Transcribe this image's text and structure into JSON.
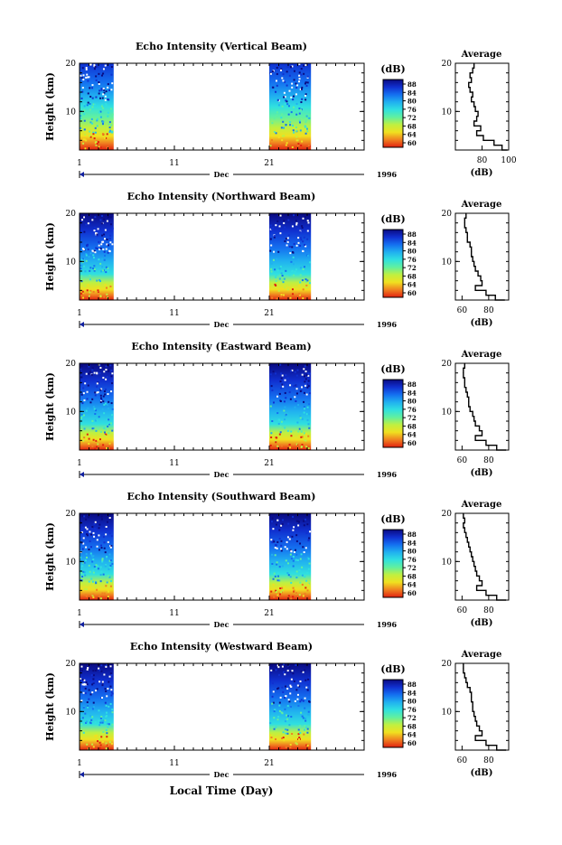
{
  "figure": {
    "x_label": "Local Time (Day)",
    "month_label": "Dec",
    "year_label": "1996"
  },
  "colorbar": {
    "unit_label": "(dB)",
    "ticks": [
      "88",
      "84",
      "80",
      "76",
      "72",
      "68",
      "64",
      "60"
    ],
    "colors": [
      "#0a0a80",
      "#1030d0",
      "#1470f0",
      "#20b0f0",
      "#30e0e0",
      "#60f0a0",
      "#c0f040",
      "#f0e020",
      "#f08020",
      "#e02010"
    ]
  },
  "chart_data": [
    {
      "type": "heatmap",
      "title": "Echo Intensity (Vertical Beam)",
      "ylabel": "Height (km)",
      "ylim": [
        2,
        20
      ],
      "yticks": [
        "20",
        "10"
      ],
      "xticks": [
        "1",
        "11",
        "21"
      ],
      "data_day_ranges": [
        [
          1,
          4.6
        ],
        [
          21,
          25.4
        ]
      ],
      "zlim": [
        50,
        88
      ],
      "average": {
        "title": "Average",
        "xlabel": "(dB)",
        "xticks": [
          "80",
          "100"
        ],
        "xlim": [
          60,
          100
        ],
        "ylim": [
          2,
          20
        ],
        "yticks": [
          "20",
          "10"
        ],
        "height_km": [
          20,
          19,
          18,
          17,
          16,
          15,
          14,
          13,
          12,
          11,
          10,
          9,
          8,
          7,
          6,
          5,
          4,
          3,
          2
        ],
        "mean_db": [
          74,
          73,
          71,
          72,
          70,
          71,
          73,
          72,
          74,
          75,
          77,
          76,
          74,
          79,
          76,
          81,
          89,
          95,
          99
        ]
      }
    },
    {
      "type": "heatmap",
      "title": "Echo Intensity (Northward Beam)",
      "ylabel": "Height (km)",
      "ylim": [
        2,
        20
      ],
      "yticks": [
        "20",
        "10"
      ],
      "xticks": [
        "1",
        "11",
        "21"
      ],
      "data_day_ranges": [
        [
          1,
          4.6
        ],
        [
          21,
          25.4
        ]
      ],
      "zlim": [
        50,
        88
      ],
      "average": {
        "title": "Average",
        "xlabel": "(dB)",
        "xticks": [
          "60",
          "80"
        ],
        "xlim": [
          55,
          95
        ],
        "ylim": [
          2,
          20
        ],
        "yticks": [
          "20",
          "10"
        ],
        "height_km": [
          20,
          19,
          18,
          17,
          16,
          15,
          14,
          13,
          12,
          11,
          10,
          9,
          8,
          7,
          6,
          5,
          4,
          3,
          2
        ],
        "mean_db": [
          63,
          62,
          62,
          63,
          64,
          64,
          66,
          67,
          67,
          68,
          69,
          70,
          72,
          74,
          75,
          70,
          78,
          85,
          92
        ]
      }
    },
    {
      "type": "heatmap",
      "title": "Echo Intensity (Eastward Beam)",
      "ylabel": "Height (km)",
      "ylim": [
        2,
        20
      ],
      "yticks": [
        "20",
        "10"
      ],
      "xticks": [
        "1",
        "11",
        "21"
      ],
      "data_day_ranges": [
        [
          1,
          4.6
        ],
        [
          21,
          25.4
        ]
      ],
      "zlim": [
        50,
        88
      ],
      "average": {
        "title": "Average",
        "xlabel": "(dB)",
        "xticks": [
          "60",
          "80"
        ],
        "xlim": [
          55,
          95
        ],
        "ylim": [
          2,
          20
        ],
        "yticks": [
          "20",
          "10"
        ],
        "height_km": [
          20,
          19,
          18,
          17,
          16,
          15,
          14,
          13,
          12,
          11,
          10,
          9,
          8,
          7,
          6,
          5,
          4,
          3,
          2
        ],
        "mean_db": [
          62,
          61,
          61,
          62,
          62,
          63,
          64,
          65,
          65,
          66,
          68,
          69,
          70,
          73,
          75,
          70,
          78,
          86,
          93
        ]
      }
    },
    {
      "type": "heatmap",
      "title": "Echo Intensity (Southward Beam)",
      "ylabel": "Height (km)",
      "ylim": [
        2,
        20
      ],
      "yticks": [
        "20",
        "10"
      ],
      "xticks": [
        "1",
        "11",
        "21"
      ],
      "data_day_ranges": [
        [
          1,
          4.6
        ],
        [
          21,
          25.4
        ]
      ],
      "zlim": [
        50,
        88
      ],
      "average": {
        "title": "Average",
        "xlabel": "(dB)",
        "xticks": [
          "60",
          "80"
        ],
        "xlim": [
          55,
          95
        ],
        "ylim": [
          2,
          20
        ],
        "yticks": [
          "20",
          "10"
        ],
        "height_km": [
          20,
          19,
          18,
          17,
          16,
          15,
          14,
          13,
          12,
          11,
          10,
          9,
          8,
          7,
          6,
          5,
          4,
          3,
          2
        ],
        "mean_db": [
          61,
          62,
          61,
          62,
          63,
          64,
          65,
          66,
          67,
          68,
          69,
          70,
          71,
          73,
          75,
          71,
          78,
          86,
          93
        ]
      }
    },
    {
      "type": "heatmap",
      "title": "Echo Intensity (Westward Beam)",
      "ylabel": "Height (km)",
      "ylim": [
        2,
        20
      ],
      "yticks": [
        "20",
        "10"
      ],
      "xticks": [
        "1",
        "11",
        "21"
      ],
      "data_day_ranges": [
        [
          1,
          4.6
        ],
        [
          21,
          25.4
        ]
      ],
      "zlim": [
        50,
        88
      ],
      "average": {
        "title": "Average",
        "xlabel": "(dB)",
        "xticks": [
          "60",
          "80"
        ],
        "xlim": [
          55,
          95
        ],
        "ylim": [
          2,
          20
        ],
        "yticks": [
          "20",
          "10"
        ],
        "height_km": [
          20,
          19,
          18,
          17,
          16,
          15,
          14,
          13,
          12,
          11,
          10,
          9,
          8,
          7,
          6,
          5,
          4,
          3,
          2
        ],
        "mean_db": [
          61,
          61,
          62,
          63,
          64,
          66,
          67,
          67,
          68,
          68,
          69,
          70,
          71,
          73,
          75,
          70,
          78,
          86,
          93
        ]
      }
    }
  ]
}
